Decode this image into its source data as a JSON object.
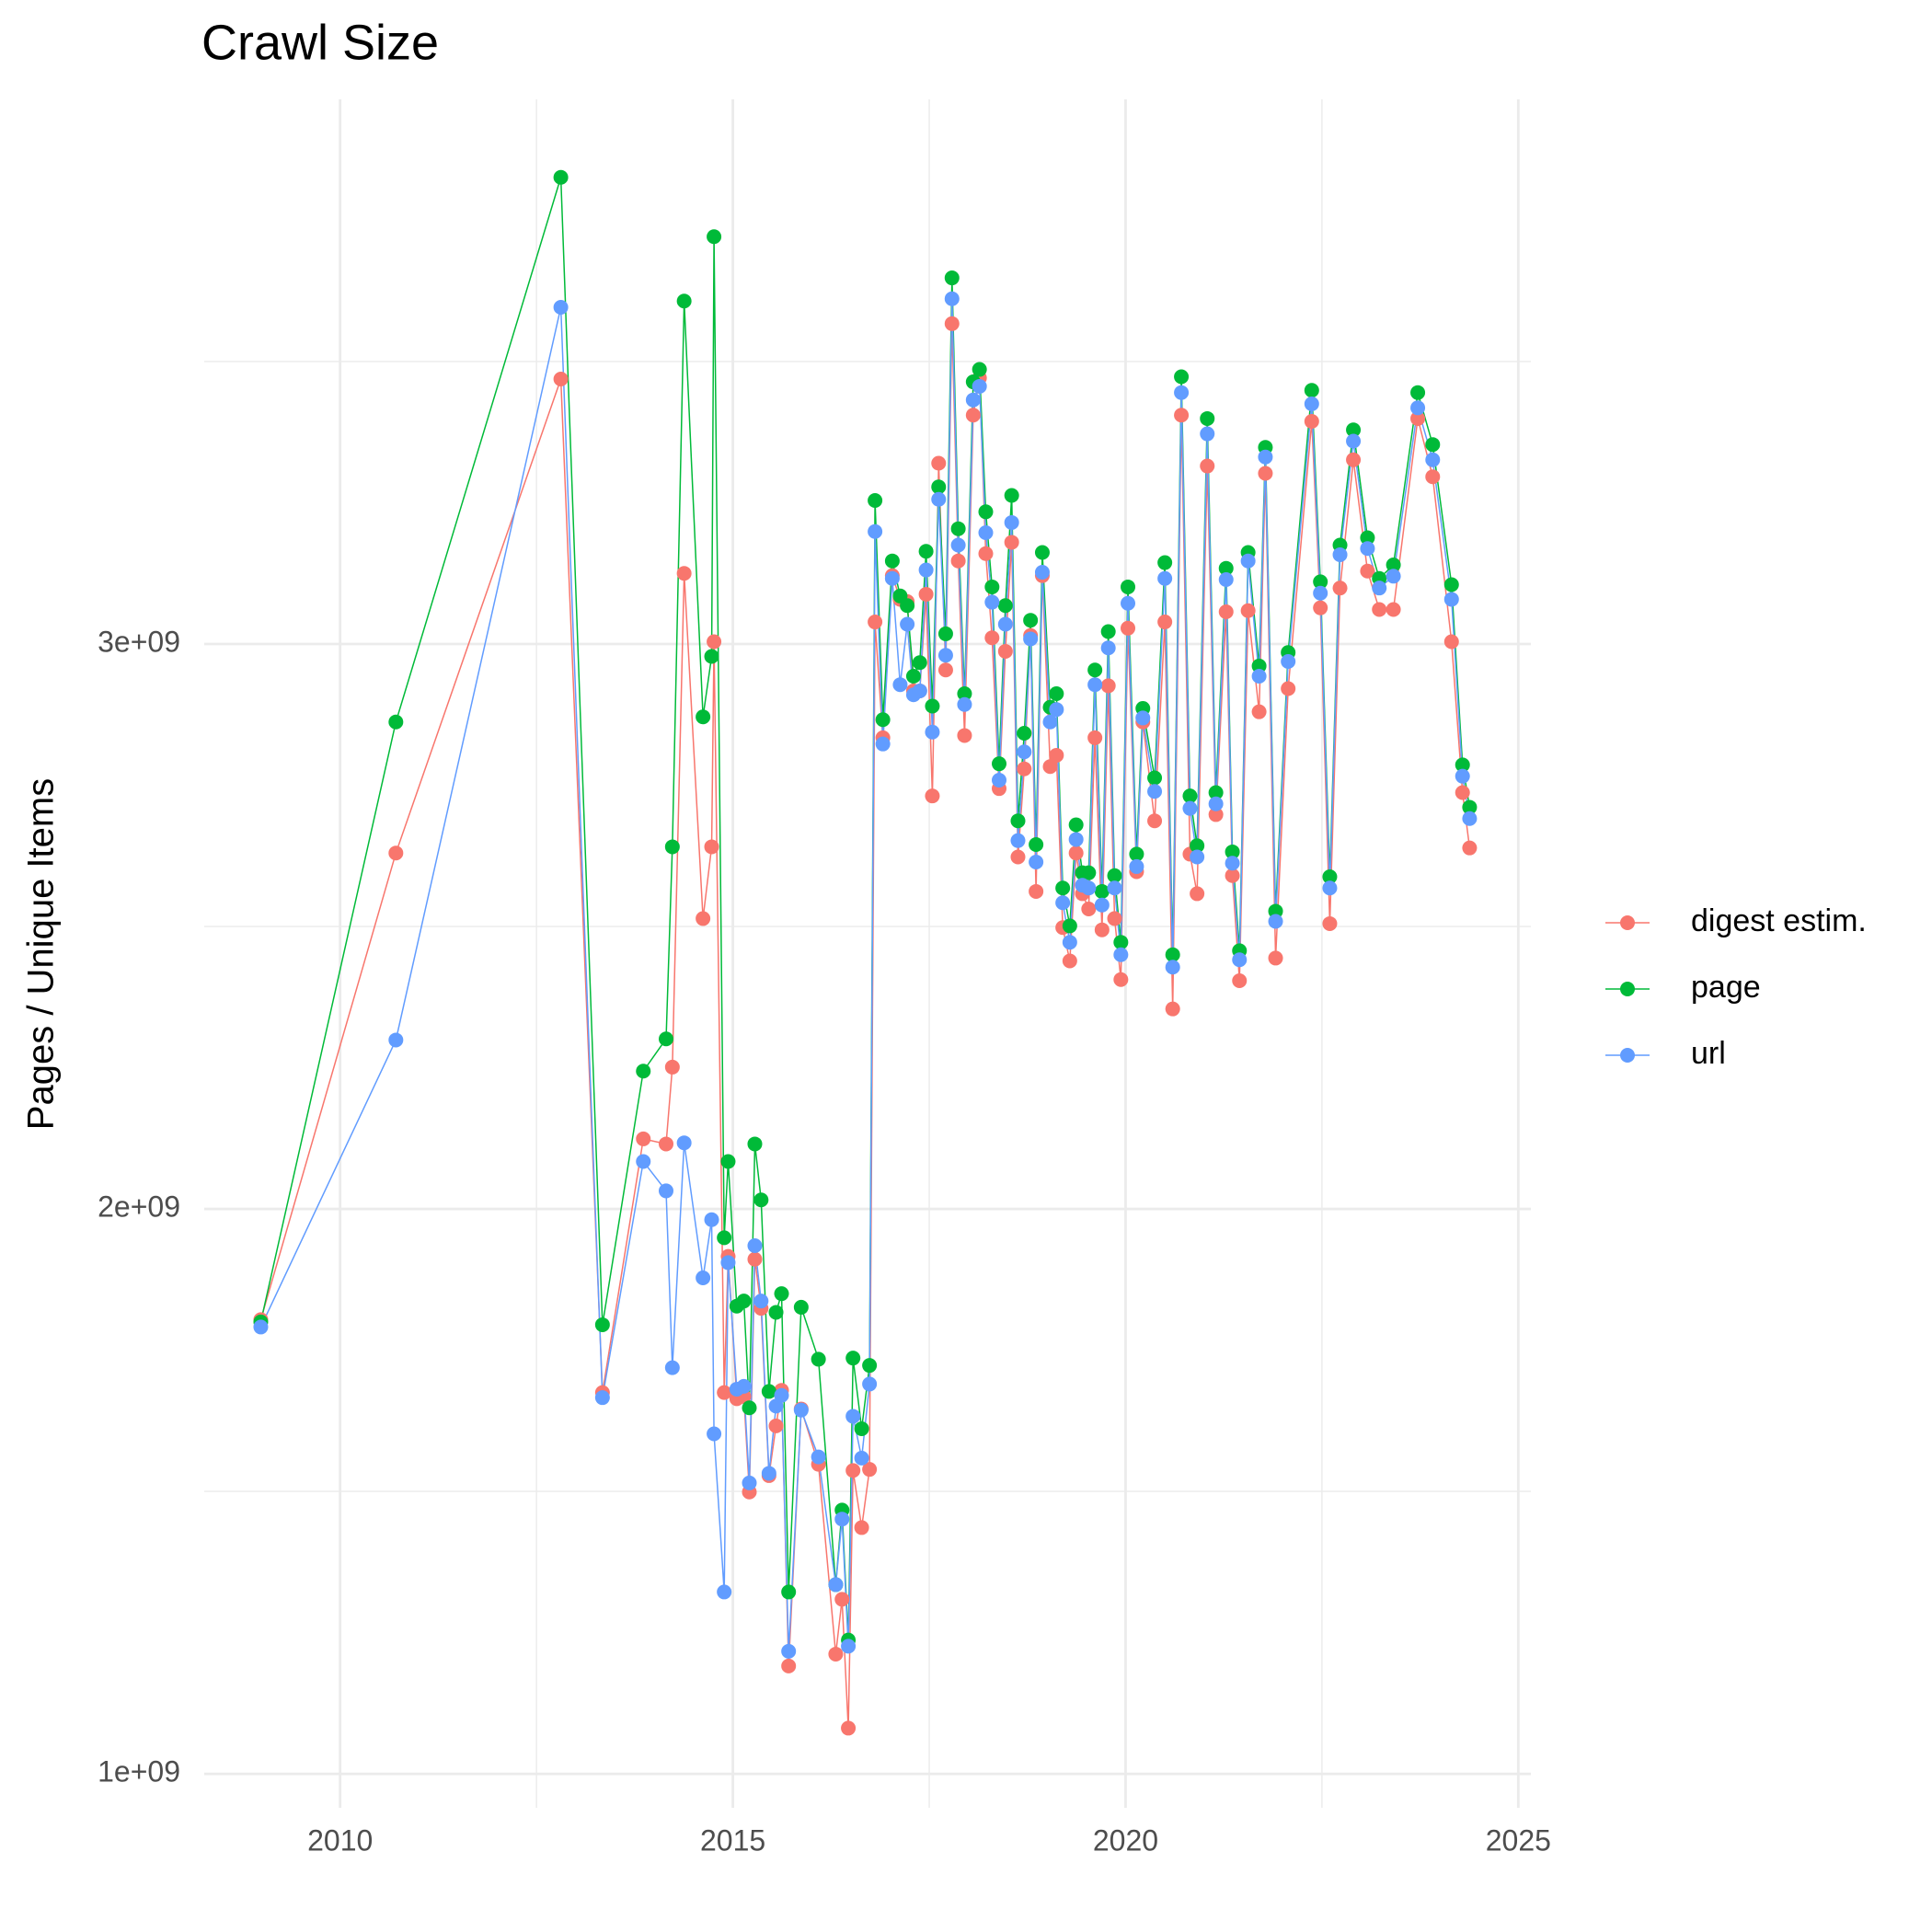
{
  "chart_data": {
    "type": "line",
    "title": "Crawl Size",
    "y_label": "Pages / Unique Items",
    "legend": "right",
    "grid": true,
    "xlim": [
      2008.27,
      2025.16
    ],
    "xticks": [
      2010,
      2015,
      2020,
      2025
    ],
    "x_minor_grid": [
      2012.5,
      2017.5,
      2022.5
    ],
    "ylim": [
      940000000.0,
      3964000000.0
    ],
    "yticks": [
      {
        "value": 1000000000.0,
        "label": "1e+09"
      },
      {
        "value": 2000000000.0,
        "label": "2e+09"
      },
      {
        "value": 3000000000.0,
        "label": "3e+09"
      }
    ],
    "y_minor_grid": [
      1500000000.0,
      2500000000.0,
      3500000000.0
    ],
    "x": [
      2008.99,
      2010.71,
      2012.81,
      2013.34,
      2013.86,
      2014.15,
      2014.23,
      2014.38,
      2014.62,
      2014.73,
      2014.76,
      2014.89,
      2014.94,
      2015.05,
      2015.14,
      2015.21,
      2015.28,
      2015.36,
      2015.46,
      2015.55,
      2015.62,
      2015.71,
      2015.87,
      2016.09,
      2016.31,
      2016.39,
      2016.47,
      2016.53,
      2016.64,
      2016.74,
      2016.81,
      2016.91,
      2017.03,
      2017.13,
      2017.22,
      2017.3,
      2017.38,
      2017.46,
      2017.54,
      2017.62,
      2017.71,
      2017.79,
      2017.87,
      2017.95,
      2018.06,
      2018.14,
      2018.22,
      2018.3,
      2018.39,
      2018.47,
      2018.55,
      2018.63,
      2018.71,
      2018.79,
      2018.86,
      2018.94,
      2019.04,
      2019.12,
      2019.2,
      2019.29,
      2019.37,
      2019.45,
      2019.53,
      2019.61,
      2019.7,
      2019.78,
      2019.86,
      2019.94,
      2020.03,
      2020.14,
      2020.22,
      2020.37,
      2020.5,
      2020.6,
      2020.71,
      2020.82,
      2020.91,
      2021.04,
      2021.15,
      2021.28,
      2021.36,
      2021.45,
      2021.56,
      2021.7,
      2021.78,
      2021.91,
      2022.07,
      2022.37,
      2022.48,
      2022.6,
      2022.73,
      2022.9,
      2023.08,
      2023.23,
      2023.41,
      2023.72,
      2023.91,
      2024.15,
      2024.29,
      2024.38
    ],
    "series": [
      {
        "name": "digest estim.",
        "color": "#F8766D",
        "values": [
          1804000000.0,
          2630000000.0,
          3469000000.0,
          1675000000.0,
          2124000000.0,
          2115000000.0,
          2251000000.0,
          3125000000.0,
          2514000000.0,
          2641000000.0,
          3004000000.0,
          1675000000.0,
          1916000000.0,
          1664000000.0,
          1668000000.0,
          1499000000.0,
          1911000000.0,
          1824000000.0,
          1528000000.0,
          1616000000.0,
          1679000000.0,
          1191000000.0,
          1646000000.0,
          1548000000.0,
          1212000000.0,
          1309000000.0,
          1081000000.0,
          1537000000.0,
          1436000000.0,
          1539000000.0,
          3039000000.0,
          2834000000.0,
          3121000000.0,
          3079000000.0,
          3075000000.0,
          2917000000.0,
          2917000000.0,
          3088000000.0,
          2731000000.0,
          3320000000.0,
          2954000000.0,
          3567000000.0,
          3147000000.0,
          2838000000.0,
          3405000000.0,
          3471000000.0,
          3160000000.0,
          3011000000.0,
          2744000000.0,
          2987000000.0,
          3180000000.0,
          2623000000.0,
          2779000000.0,
          3015000000.0,
          2562000000.0,
          3121000000.0,
          2783000000.0,
          2803000000.0,
          2498000000.0,
          2439000000.0,
          2630000000.0,
          2558000000.0,
          2531000000.0,
          2834000000.0,
          2494000000.0,
          2926000000.0,
          2514000000.0,
          2406000000.0,
          3028000000.0,
          2597000000.0,
          2862000000.0,
          2687000000.0,
          3039000000.0,
          2354000000.0,
          3405000000.0,
          2628000000.0,
          2558000000.0,
          3315000000.0,
          2698000000.0,
          3057000000.0,
          2590000000.0,
          2404000000.0,
          3059000000.0,
          2880000000.0,
          3302000000.0,
          2444000000.0,
          2921000000.0,
          3394000000.0,
          3064000000.0,
          2505000000.0,
          3099000000.0,
          3326000000.0,
          3129000000.0,
          3061000000.0,
          3061000000.0,
          3399000000.0,
          3296000000.0,
          3004000000.0,
          2737000000.0,
          2639000000.0
        ]
      },
      {
        "name": "page",
        "color": "#00BA38",
        "values": [
          1800000000.0,
          2862000000.0,
          3826000000.0,
          1795000000.0,
          2244000000.0,
          2301000000.0,
          2641000000.0,
          3607000000.0,
          2871000000.0,
          2978000000.0,
          3721000000.0,
          1949000000.0,
          2084000000.0,
          1828000000.0,
          1837000000.0,
          1648000000.0,
          2115000000.0,
          2016000000.0,
          1677000000.0,
          1817000000.0,
          1850000000.0,
          1322000000.0,
          1826000000.0,
          1734000000.0,
          1335000000.0,
          1467000000.0,
          1237000000.0,
          1736000000.0,
          1611000000.0,
          1723000000.0,
          3254000000.0,
          2866000000.0,
          3147000000.0,
          3085000000.0,
          3068000000.0,
          2943000000.0,
          2967000000.0,
          3164000000.0,
          2890000000.0,
          3278000000.0,
          3018000000.0,
          3648000000.0,
          3204000000.0,
          2912000000.0,
          3464000000.0,
          3486000000.0,
          3234000000.0,
          3101000000.0,
          2788000000.0,
          3068000000.0,
          3263000000.0,
          2687000000.0,
          2842000000.0,
          3042000000.0,
          2645000000.0,
          3162000000.0,
          2888000000.0,
          2912000000.0,
          2568000000.0,
          2501000000.0,
          2680000000.0,
          2595000000.0,
          2595000000.0,
          2954000000.0,
          2562000000.0,
          3022000000.0,
          2590000000.0,
          2472000000.0,
          3101000000.0,
          2628000000.0,
          2886000000.0,
          2763000000.0,
          3144000000.0,
          2450000000.0,
          3473000000.0,
          2731000000.0,
          2643000000.0,
          3399000000.0,
          2737000000.0,
          3134000000.0,
          2632000000.0,
          2457000000.0,
          3162000000.0,
          2961000000.0,
          3348000000.0,
          2527000000.0,
          2985000000.0,
          3449000000.0,
          3110000000.0,
          2588000000.0,
          3175000000.0,
          3379000000.0,
          3188000000.0,
          3116000000.0,
          3140000000.0,
          3445000000.0,
          3353000000.0,
          3105000000.0,
          2786000000.0,
          2711000000.0
        ]
      },
      {
        "name": "url",
        "color": "#619CFF",
        "values": [
          1791000000.0,
          2299000000.0,
          3596000000.0,
          1666000000.0,
          2084000000.0,
          2032000000.0,
          1719000000.0,
          2117000000.0,
          1878000000.0,
          1981000000.0,
          1602000000.0,
          1322000000.0,
          1905000000.0,
          1681000000.0,
          1686000000.0,
          1515000000.0,
          1935000000.0,
          1837000000.0,
          1532000000.0,
          1651000000.0,
          1670000000.0,
          1217000000.0,
          1644000000.0,
          1561000000.0,
          1335000000.0,
          1451000000.0,
          1226000000.0,
          1633000000.0,
          1559000000.0,
          1690000000.0,
          3199000000.0,
          2823000000.0,
          3116000000.0,
          2928000000.0,
          3035000000.0,
          2910000000.0,
          2917000000.0,
          3131000000.0,
          2844000000.0,
          3256000000.0,
          2980000000.0,
          3611000000.0,
          3175000000.0,
          2893000000.0,
          3432000000.0,
          3456000000.0,
          3197000000.0,
          3074000000.0,
          2759000000.0,
          3035000000.0,
          3215000000.0,
          2652000000.0,
          2809000000.0,
          3009000000.0,
          2614000000.0,
          3127000000.0,
          2862000000.0,
          2884000000.0,
          2542000000.0,
          2472000000.0,
          2654000000.0,
          2573000000.0,
          2568000000.0,
          2928000000.0,
          2538000000.0,
          2993000000.0,
          2568000000.0,
          2450000000.0,
          3072000000.0,
          2606000000.0,
          2869000000.0,
          2739000000.0,
          3116000000.0,
          2428000000.0,
          3445000000.0,
          2709000000.0,
          2623000000.0,
          3372000000.0,
          2717000000.0,
          3114000000.0,
          2612000000.0,
          2441000000.0,
          3147000000.0,
          2943000000.0,
          3331000000.0,
          2509000000.0,
          2969000000.0,
          3425000000.0,
          3090000000.0,
          2568000000.0,
          3158000000.0,
          3359000000.0,
          3169000000.0,
          3099000000.0,
          3120000000.0,
          3418000000.0,
          3326000000.0,
          3079000000.0,
          2766000000.0,
          2691000000.0
        ]
      }
    ]
  }
}
